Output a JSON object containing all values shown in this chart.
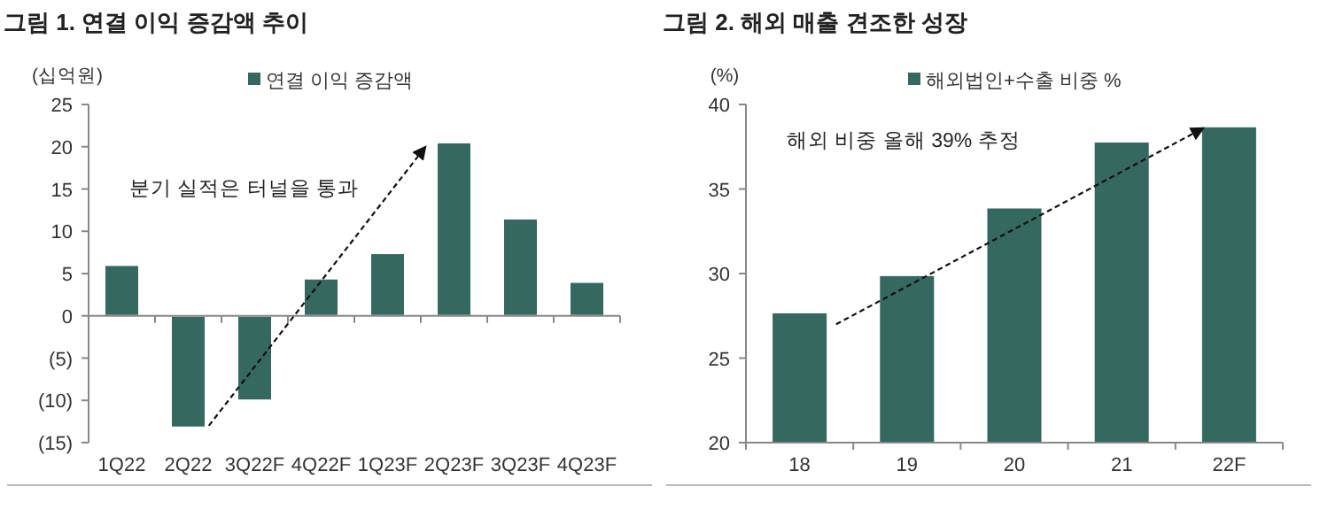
{
  "chart_data": [
    {
      "type": "bar",
      "title": "그림 1. 연결 이익 증감액 추이",
      "ylabel": "(십억원)",
      "annotations": [
        "분기 실적은 터널을 통과"
      ],
      "categories": [
        "1Q22",
        "2Q22",
        "3Q22F",
        "4Q22F",
        "1Q23F",
        "2Q23F",
        "3Q23F",
        "4Q23F"
      ],
      "series": [
        {
          "name": "연결 이익 증감액",
          "color": "#35685e",
          "values": [
            6.0,
            -13.2,
            -10.0,
            4.4,
            7.4,
            20.5,
            11.5,
            4.0
          ]
        }
      ],
      "ylim": [
        -15,
        25
      ],
      "yticks": [
        {
          "value": -15,
          "label": "(15)"
        },
        {
          "value": -10,
          "label": "(10)"
        },
        {
          "value": -5,
          "label": "(5)"
        },
        0,
        5,
        10,
        15,
        20,
        25
      ],
      "legend": "top"
    },
    {
      "type": "bar",
      "title": "그림 2. 해외 매출 견조한 성장",
      "ylabel": "(%)",
      "annotations": [
        "해외 비중 올해 39% 추정"
      ],
      "categories": [
        "18",
        "19",
        "20",
        "21",
        "22F"
      ],
      "series": [
        {
          "name": "해외법인+수출 비중 %",
          "color": "#35685e",
          "values": [
            27.7,
            29.9,
            33.9,
            37.8,
            38.7
          ]
        }
      ],
      "ylim": [
        20,
        40
      ],
      "yticks": [
        20,
        25,
        30,
        35,
        40
      ],
      "legend": "top"
    }
  ]
}
